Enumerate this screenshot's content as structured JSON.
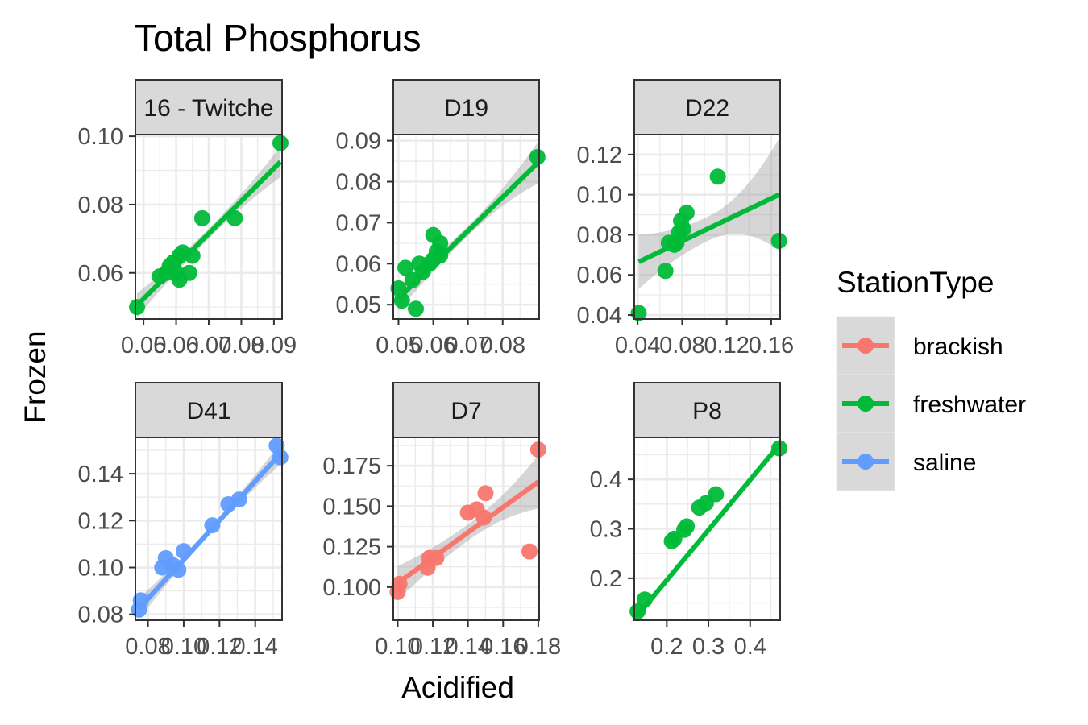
{
  "chart_data": {
    "type": "scatter",
    "title": "Total Phosphorus",
    "xlabel": "Acidified",
    "ylabel": "Frozen",
    "legend": {
      "title": "StationType",
      "placement": "right",
      "entries": [
        {
          "key": "brackish",
          "label": "brackish",
          "color": "#F8766D"
        },
        {
          "key": "freshwater",
          "label": "freshwater",
          "color": "#00BA38"
        },
        {
          "key": "saline",
          "label": "saline",
          "color": "#619CFF"
        }
      ]
    },
    "panels": [
      {
        "strip": "16 - Twitche",
        "station_type": "freshwater",
        "xlim": [
          0.0475,
          0.0925
        ],
        "ylim": [
          0.0465,
          0.1005
        ],
        "xticks": [
          {
            "v": 0.05,
            "label": "0.05"
          },
          {
            "v": 0.06,
            "label": "0.06"
          },
          {
            "v": 0.07,
            "label": "0.07"
          },
          {
            "v": 0.08,
            "label": "0.08"
          },
          {
            "v": 0.09,
            "label": "0.09"
          }
        ],
        "xminor": [
          0.055,
          0.065,
          0.075,
          0.085
        ],
        "yticks": [
          {
            "v": 0.06,
            "label": "0.06"
          },
          {
            "v": 0.08,
            "label": "0.08"
          },
          {
            "v": 0.1,
            "label": "0.10"
          }
        ],
        "yminor": [
          0.05,
          0.07,
          0.09
        ],
        "fit": {
          "x": [
            0.048,
            0.092
          ],
          "y": [
            0.0505,
            0.0925
          ]
        },
        "band_halfwidth": [
          0.0035,
          0.0015,
          0.0045
        ],
        "points": [
          [
            0.048,
            0.05
          ],
          [
            0.055,
            0.059
          ],
          [
            0.057,
            0.06
          ],
          [
            0.058,
            0.062
          ],
          [
            0.059,
            0.063
          ],
          [
            0.06,
            0.06
          ],
          [
            0.061,
            0.065
          ],
          [
            0.061,
            0.058
          ],
          [
            0.062,
            0.066
          ],
          [
            0.064,
            0.06
          ],
          [
            0.065,
            0.065
          ],
          [
            0.068,
            0.076
          ],
          [
            0.078,
            0.076
          ],
          [
            0.092,
            0.098
          ]
        ]
      },
      {
        "strip": "D19",
        "station_type": "freshwater",
        "xlim": [
          0.0485,
          0.0905
        ],
        "ylim": [
          0.0465,
          0.0915
        ],
        "xticks": [
          {
            "v": 0.05,
            "label": "0.05"
          },
          {
            "v": 0.06,
            "label": "0.06"
          },
          {
            "v": 0.07,
            "label": "0.07"
          },
          {
            "v": 0.08,
            "label": "0.08"
          }
        ],
        "xminor": [
          0.055,
          0.065,
          0.075,
          0.085
        ],
        "yticks": [
          {
            "v": 0.05,
            "label": "0.05"
          },
          {
            "v": 0.06,
            "label": "0.06"
          },
          {
            "v": 0.07,
            "label": "0.07"
          },
          {
            "v": 0.08,
            "label": "0.08"
          },
          {
            "v": 0.09,
            "label": "0.09"
          }
        ],
        "yminor": [
          0.055,
          0.065,
          0.075,
          0.085
        ],
        "fit": {
          "x": [
            0.05,
            0.09
          ],
          "y": [
            0.0515,
            0.0845
          ]
        },
        "band_halfwidth": [
          0.003,
          0.0012,
          0.005
        ],
        "points": [
          [
            0.05,
            0.054
          ],
          [
            0.051,
            0.051
          ],
          [
            0.052,
            0.059
          ],
          [
            0.054,
            0.056
          ],
          [
            0.055,
            0.049
          ],
          [
            0.056,
            0.06
          ],
          [
            0.057,
            0.058
          ],
          [
            0.059,
            0.06
          ],
          [
            0.06,
            0.061
          ],
          [
            0.06,
            0.067
          ],
          [
            0.061,
            0.063
          ],
          [
            0.062,
            0.062
          ],
          [
            0.062,
            0.065
          ],
          [
            0.09,
            0.086
          ]
        ]
      },
      {
        "strip": "D22",
        "station_type": "freshwater",
        "xlim": [
          0.037,
          0.168
        ],
        "ylim": [
          0.038,
          0.13
        ],
        "xticks": [
          {
            "v": 0.04,
            "label": "0.04"
          },
          {
            "v": 0.08,
            "label": "0.08"
          },
          {
            "v": 0.12,
            "label": "0.12"
          },
          {
            "v": 0.16,
            "label": "0.16"
          }
        ],
        "xminor": [
          0.06,
          0.1,
          0.14
        ],
        "yticks": [
          {
            "v": 0.04,
            "label": "0.04"
          },
          {
            "v": 0.06,
            "label": "0.06"
          },
          {
            "v": 0.08,
            "label": "0.08"
          },
          {
            "v": 0.1,
            "label": "0.10"
          },
          {
            "v": 0.12,
            "label": "0.12"
          }
        ],
        "yminor": [
          0.05,
          0.07,
          0.09,
          0.11
        ],
        "fit": {
          "x": [
            0.041,
            0.167
          ],
          "y": [
            0.0665,
            0.1
          ]
        },
        "band_halfwidth": [
          0.0135,
          0.006,
          0.028
        ],
        "points": [
          [
            0.041,
            0.041
          ],
          [
            0.065,
            0.062
          ],
          [
            0.068,
            0.076
          ],
          [
            0.073,
            0.075
          ],
          [
            0.075,
            0.076
          ],
          [
            0.077,
            0.081
          ],
          [
            0.079,
            0.087
          ],
          [
            0.081,
            0.083
          ],
          [
            0.084,
            0.091
          ],
          [
            0.112,
            0.109
          ],
          [
            0.167,
            0.077
          ]
        ]
      },
      {
        "strip": "D41",
        "station_type": "saline",
        "xlim": [
          0.073,
          0.155
        ],
        "ylim": [
          0.0775,
          0.1555
        ],
        "xticks": [
          {
            "v": 0.08,
            "label": "0.08"
          },
          {
            "v": 0.1,
            "label": "0.10"
          },
          {
            "v": 0.12,
            "label": "0.12"
          },
          {
            "v": 0.14,
            "label": "0.14"
          }
        ],
        "xminor": [
          0.09,
          0.11,
          0.13,
          0.15
        ],
        "yticks": [
          {
            "v": 0.08,
            "label": "0.08"
          },
          {
            "v": 0.1,
            "label": "0.10"
          },
          {
            "v": 0.12,
            "label": "0.12"
          },
          {
            "v": 0.14,
            "label": "0.14"
          }
        ],
        "yminor": [
          0.09,
          0.11,
          0.13,
          0.15
        ],
        "fit": {
          "x": [
            0.075,
            0.154
          ],
          "y": [
            0.0825,
            0.1485
          ]
        },
        "band_halfwidth": [
          0.0045,
          0.0015,
          0.0045
        ],
        "points": [
          [
            0.075,
            0.082
          ],
          [
            0.076,
            0.086
          ],
          [
            0.088,
            0.1
          ],
          [
            0.09,
            0.104
          ],
          [
            0.094,
            0.101
          ],
          [
            0.097,
            0.099
          ],
          [
            0.1,
            0.107
          ],
          [
            0.116,
            0.118
          ],
          [
            0.125,
            0.127
          ],
          [
            0.131,
            0.129
          ],
          [
            0.152,
            0.152
          ],
          [
            0.154,
            0.147
          ]
        ]
      },
      {
        "strip": "D7",
        "station_type": "brackish",
        "xlim": [
          0.0975,
          0.1805
        ],
        "ylim": [
          0.0795,
          0.1925
        ],
        "xticks": [
          {
            "v": 0.1,
            "label": "0.10"
          },
          {
            "v": 0.12,
            "label": "0.12"
          },
          {
            "v": 0.14,
            "label": "0.14"
          },
          {
            "v": 0.16,
            "label": "0.16"
          },
          {
            "v": 0.18,
            "label": "0.18"
          }
        ],
        "xminor": [
          0.11,
          0.13,
          0.15,
          0.17
        ],
        "yticks": [
          {
            "v": 0.1,
            "label": "0.100"
          },
          {
            "v": 0.125,
            "label": "0.125"
          },
          {
            "v": 0.15,
            "label": "0.150"
          },
          {
            "v": 0.175,
            "label": "0.175"
          }
        ],
        "yminor": [
          0.0875,
          0.1125,
          0.1375,
          0.1625,
          0.1875
        ],
        "fit": {
          "x": [
            0.1,
            0.18
          ],
          "y": [
            0.1025,
            0.165
          ]
        },
        "band_halfwidth": [
          0.0105,
          0.005,
          0.0165
        ],
        "points": [
          [
            0.1,
            0.097
          ],
          [
            0.101,
            0.102
          ],
          [
            0.117,
            0.112
          ],
          [
            0.118,
            0.118
          ],
          [
            0.122,
            0.118
          ],
          [
            0.14,
            0.146
          ],
          [
            0.145,
            0.148
          ],
          [
            0.149,
            0.143
          ],
          [
            0.15,
            0.158
          ],
          [
            0.175,
            0.122
          ],
          [
            0.18,
            0.185
          ]
        ]
      },
      {
        "strip": "P8",
        "station_type": "freshwater",
        "xlim": [
          0.122,
          0.472
        ],
        "ylim": [
          0.115,
          0.485
        ],
        "xticks": [
          {
            "v": 0.2,
            "label": "0.2"
          },
          {
            "v": 0.3,
            "label": "0.3"
          },
          {
            "v": 0.4,
            "label": "0.4"
          }
        ],
        "xminor": [
          0.15,
          0.25,
          0.35,
          0.45
        ],
        "yticks": [
          {
            "v": 0.2,
            "label": "0.2"
          },
          {
            "v": 0.3,
            "label": "0.3"
          },
          {
            "v": 0.4,
            "label": "0.4"
          }
        ],
        "yminor": [
          0.15,
          0.25,
          0.35,
          0.45
        ],
        "fit": {
          "x": [
            0.13,
            0.47
          ],
          "y": [
            0.125,
            0.47
          ]
        },
        "band_halfwidth": [
          0.004,
          0.002,
          0.004
        ],
        "points": [
          [
            0.13,
            0.133
          ],
          [
            0.147,
            0.157
          ],
          [
            0.212,
            0.275
          ],
          [
            0.218,
            0.28
          ],
          [
            0.242,
            0.298
          ],
          [
            0.248,
            0.305
          ],
          [
            0.278,
            0.343
          ],
          [
            0.294,
            0.352
          ],
          [
            0.318,
            0.37
          ],
          [
            0.47,
            0.463
          ]
        ]
      }
    ]
  }
}
